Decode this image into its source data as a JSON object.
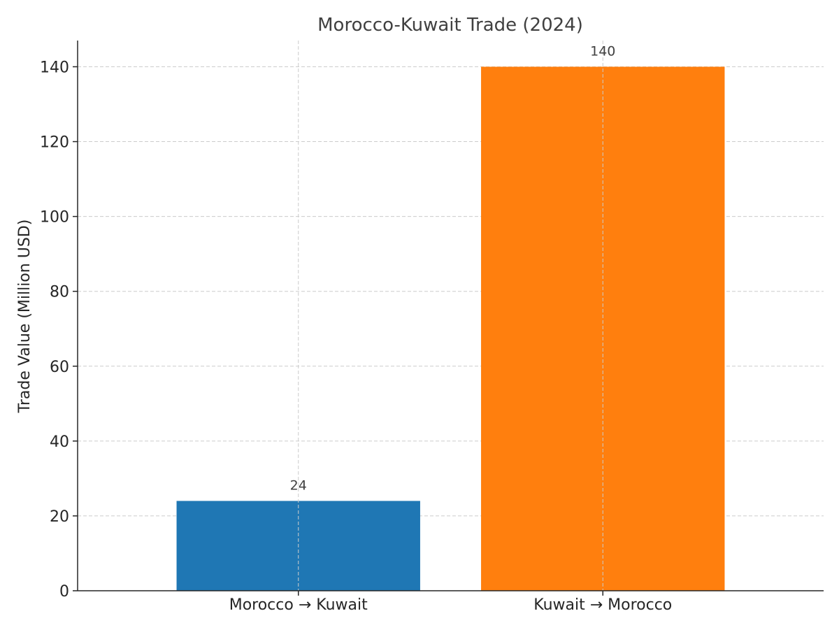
{
  "chart_data": {
    "type": "bar",
    "title": "Morocco-Kuwait Trade (2024)",
    "xlabel": "",
    "ylabel": "Trade Value (Million USD)",
    "categories": [
      "Morocco → Kuwait",
      "Kuwait → Morocco"
    ],
    "values": [
      24,
      140
    ],
    "data_labels": [
      "24",
      "140"
    ],
    "colors": [
      "#1f77b4",
      "#ff7f0e"
    ],
    "ylim": [
      0,
      147
    ],
    "yticks": [
      0,
      20,
      40,
      60,
      80,
      100,
      120,
      140
    ],
    "grid": true,
    "grid_style": "dashed"
  }
}
